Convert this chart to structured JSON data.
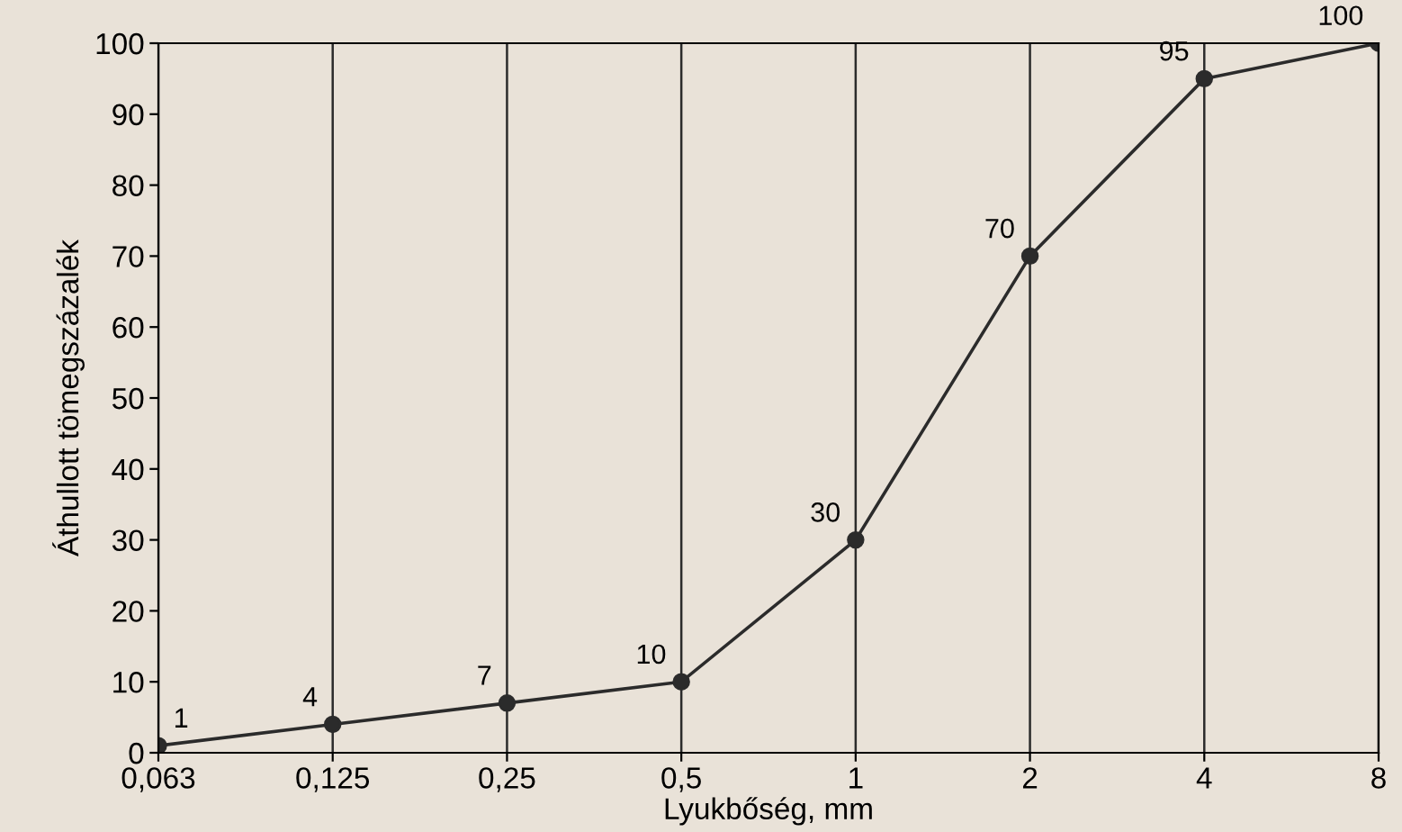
{
  "chart_data": {
    "type": "line",
    "xlabel": "Lyukbőség, mm",
    "ylabel": "Áthullott tömegszázalék",
    "categories": [
      "0,063",
      "0,125",
      "0,25",
      "0,5",
      "1",
      "2",
      "4",
      "8"
    ],
    "values": [
      1,
      4,
      7,
      10,
      30,
      70,
      95,
      100
    ],
    "color": "#2b2b2b",
    "marker": "circle",
    "line_style": "solid",
    "data_labels": true,
    "ylim": [
      0,
      100
    ],
    "yticks": [
      0,
      10,
      20,
      30,
      40,
      50,
      60,
      70,
      80,
      90,
      100
    ],
    "grid": "x",
    "legend": false
  }
}
